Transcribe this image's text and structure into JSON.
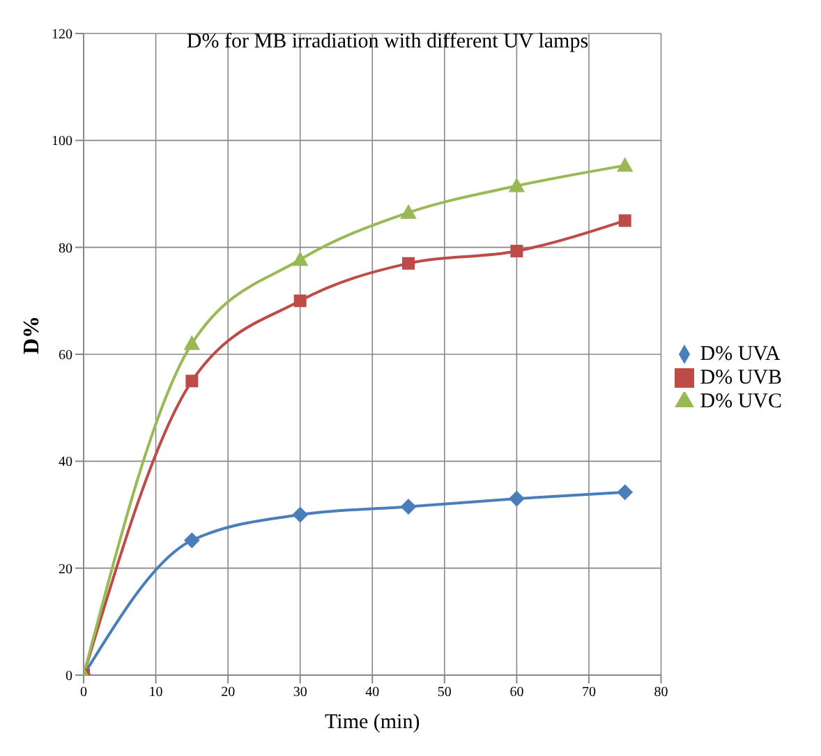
{
  "chart_data": {
    "type": "line",
    "title": "D% for MB irradiation with different UV lamps",
    "xlabel": "Time (min)",
    "ylabel": "D%",
    "x": [
      0,
      15,
      30,
      45,
      60,
      75
    ],
    "series": [
      {
        "name": "D% UVA",
        "color": "#4a7ebb",
        "marker": "diamond",
        "values": [
          0,
          25.2,
          30,
          31.5,
          33,
          34.2
        ]
      },
      {
        "name": "D% UVB",
        "color": "#be4b48",
        "marker": "square",
        "values": [
          0,
          55,
          70,
          77,
          79.3,
          85
        ]
      },
      {
        "name": "D% UVC",
        "color": "#98b954",
        "marker": "triangle",
        "values": [
          0,
          62,
          77.7,
          86.5,
          91.5,
          95.3
        ]
      }
    ],
    "xlim": [
      0,
      80
    ],
    "xticks": [
      0,
      10,
      20,
      30,
      40,
      50,
      60,
      70,
      80
    ],
    "ylim": [
      0,
      120
    ],
    "yticks": [
      0,
      20,
      40,
      60,
      80,
      100,
      120
    ],
    "grid": true,
    "legend": "right"
  }
}
